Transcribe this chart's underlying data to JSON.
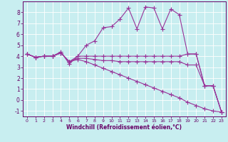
{
  "bg_color": "#c8eef0",
  "grid_color": "#aadddd",
  "line_color": "#993399",
  "xlabel": "Windchill (Refroidissement éolien,°C)",
  "xlim": [
    -0.5,
    23.5
  ],
  "ylim": [
    -1.5,
    9.0
  ],
  "yticks": [
    -1,
    0,
    1,
    2,
    3,
    4,
    5,
    6,
    7,
    8
  ],
  "xticks": [
    0,
    1,
    2,
    3,
    4,
    5,
    6,
    7,
    8,
    9,
    10,
    11,
    12,
    13,
    14,
    15,
    16,
    17,
    18,
    19,
    20,
    21,
    22,
    23
  ],
  "series1_x": [
    0,
    1,
    2,
    3,
    4,
    5,
    6,
    7,
    8,
    9,
    10,
    11,
    12,
    13,
    14,
    15,
    16,
    17,
    18,
    19,
    20,
    21,
    22,
    23
  ],
  "series1_y": [
    4.2,
    3.9,
    4.0,
    4.0,
    4.4,
    3.3,
    4.0,
    5.0,
    5.4,
    6.6,
    6.7,
    7.4,
    8.4,
    6.5,
    8.5,
    8.4,
    6.5,
    8.3,
    7.8,
    4.2,
    4.2,
    1.3,
    1.3,
    -1.1
  ],
  "series2_x": [
    0,
    1,
    2,
    3,
    4,
    5,
    6,
    7,
    8,
    9,
    10,
    11,
    12,
    13,
    14,
    15,
    16,
    17,
    18,
    19,
    20,
    21,
    22,
    23
  ],
  "series2_y": [
    4.2,
    3.9,
    4.0,
    4.0,
    4.3,
    3.5,
    4.0,
    4.0,
    4.0,
    4.0,
    4.0,
    4.0,
    4.0,
    4.0,
    4.0,
    4.0,
    4.0,
    4.0,
    4.0,
    4.2,
    4.2,
    1.3,
    1.3,
    -1.1
  ],
  "series3_x": [
    0,
    1,
    2,
    3,
    4,
    5,
    6,
    7,
    8,
    9,
    10,
    11,
    12,
    13,
    14,
    15,
    16,
    17,
    18,
    19,
    20,
    21,
    22,
    23
  ],
  "series3_y": [
    4.2,
    3.9,
    4.0,
    4.0,
    4.3,
    3.5,
    3.8,
    3.8,
    3.7,
    3.6,
    3.6,
    3.5,
    3.5,
    3.5,
    3.5,
    3.5,
    3.5,
    3.5,
    3.5,
    3.2,
    3.2,
    1.3,
    1.3,
    -1.1
  ],
  "series4_x": [
    0,
    1,
    2,
    3,
    4,
    5,
    6,
    7,
    8,
    9,
    10,
    11,
    12,
    13,
    14,
    15,
    16,
    17,
    18,
    19,
    20,
    21,
    22,
    23
  ],
  "series4_y": [
    4.2,
    3.9,
    4.0,
    4.0,
    4.3,
    3.5,
    3.7,
    3.5,
    3.2,
    2.9,
    2.6,
    2.3,
    2.0,
    1.7,
    1.4,
    1.1,
    0.8,
    0.5,
    0.2,
    -0.2,
    -0.5,
    -0.8,
    -1.0,
    -1.1
  ]
}
